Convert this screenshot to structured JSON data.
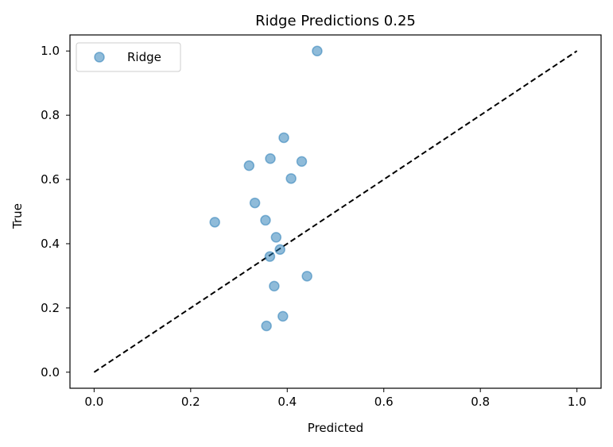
{
  "chart_data": {
    "type": "scatter",
    "title": "Ridge Predictions 0.25",
    "xlabel": "Predicted",
    "ylabel": "True",
    "xlim": [
      -0.05,
      1.05
    ],
    "ylim": [
      -0.05,
      1.05
    ],
    "xticks": [
      "0.0",
      "0.2",
      "0.4",
      "0.6",
      "0.8",
      "1.0"
    ],
    "yticks": [
      "0.0",
      "0.2",
      "0.4",
      "0.6",
      "0.8",
      "1.0"
    ],
    "grid": false,
    "legend": {
      "position": "upper-left",
      "entries": [
        "Ridge"
      ]
    },
    "series": [
      {
        "name": "Ridge",
        "color": "#1f77b4",
        "points": [
          {
            "x": 0.462,
            "y": 1.0
          },
          {
            "x": 0.393,
            "y": 0.73
          },
          {
            "x": 0.365,
            "y": 0.665
          },
          {
            "x": 0.321,
            "y": 0.643
          },
          {
            "x": 0.43,
            "y": 0.656
          },
          {
            "x": 0.408,
            "y": 0.603
          },
          {
            "x": 0.333,
            "y": 0.527
          },
          {
            "x": 0.25,
            "y": 0.467
          },
          {
            "x": 0.355,
            "y": 0.473
          },
          {
            "x": 0.377,
            "y": 0.42
          },
          {
            "x": 0.385,
            "y": 0.382
          },
          {
            "x": 0.364,
            "y": 0.36
          },
          {
            "x": 0.441,
            "y": 0.299
          },
          {
            "x": 0.373,
            "y": 0.268
          },
          {
            "x": 0.391,
            "y": 0.174
          },
          {
            "x": 0.357,
            "y": 0.144
          }
        ]
      }
    ],
    "reference_line": {
      "from": [
        0,
        0
      ],
      "to": [
        1,
        1
      ],
      "style": "dashed",
      "color": "#000000"
    }
  }
}
